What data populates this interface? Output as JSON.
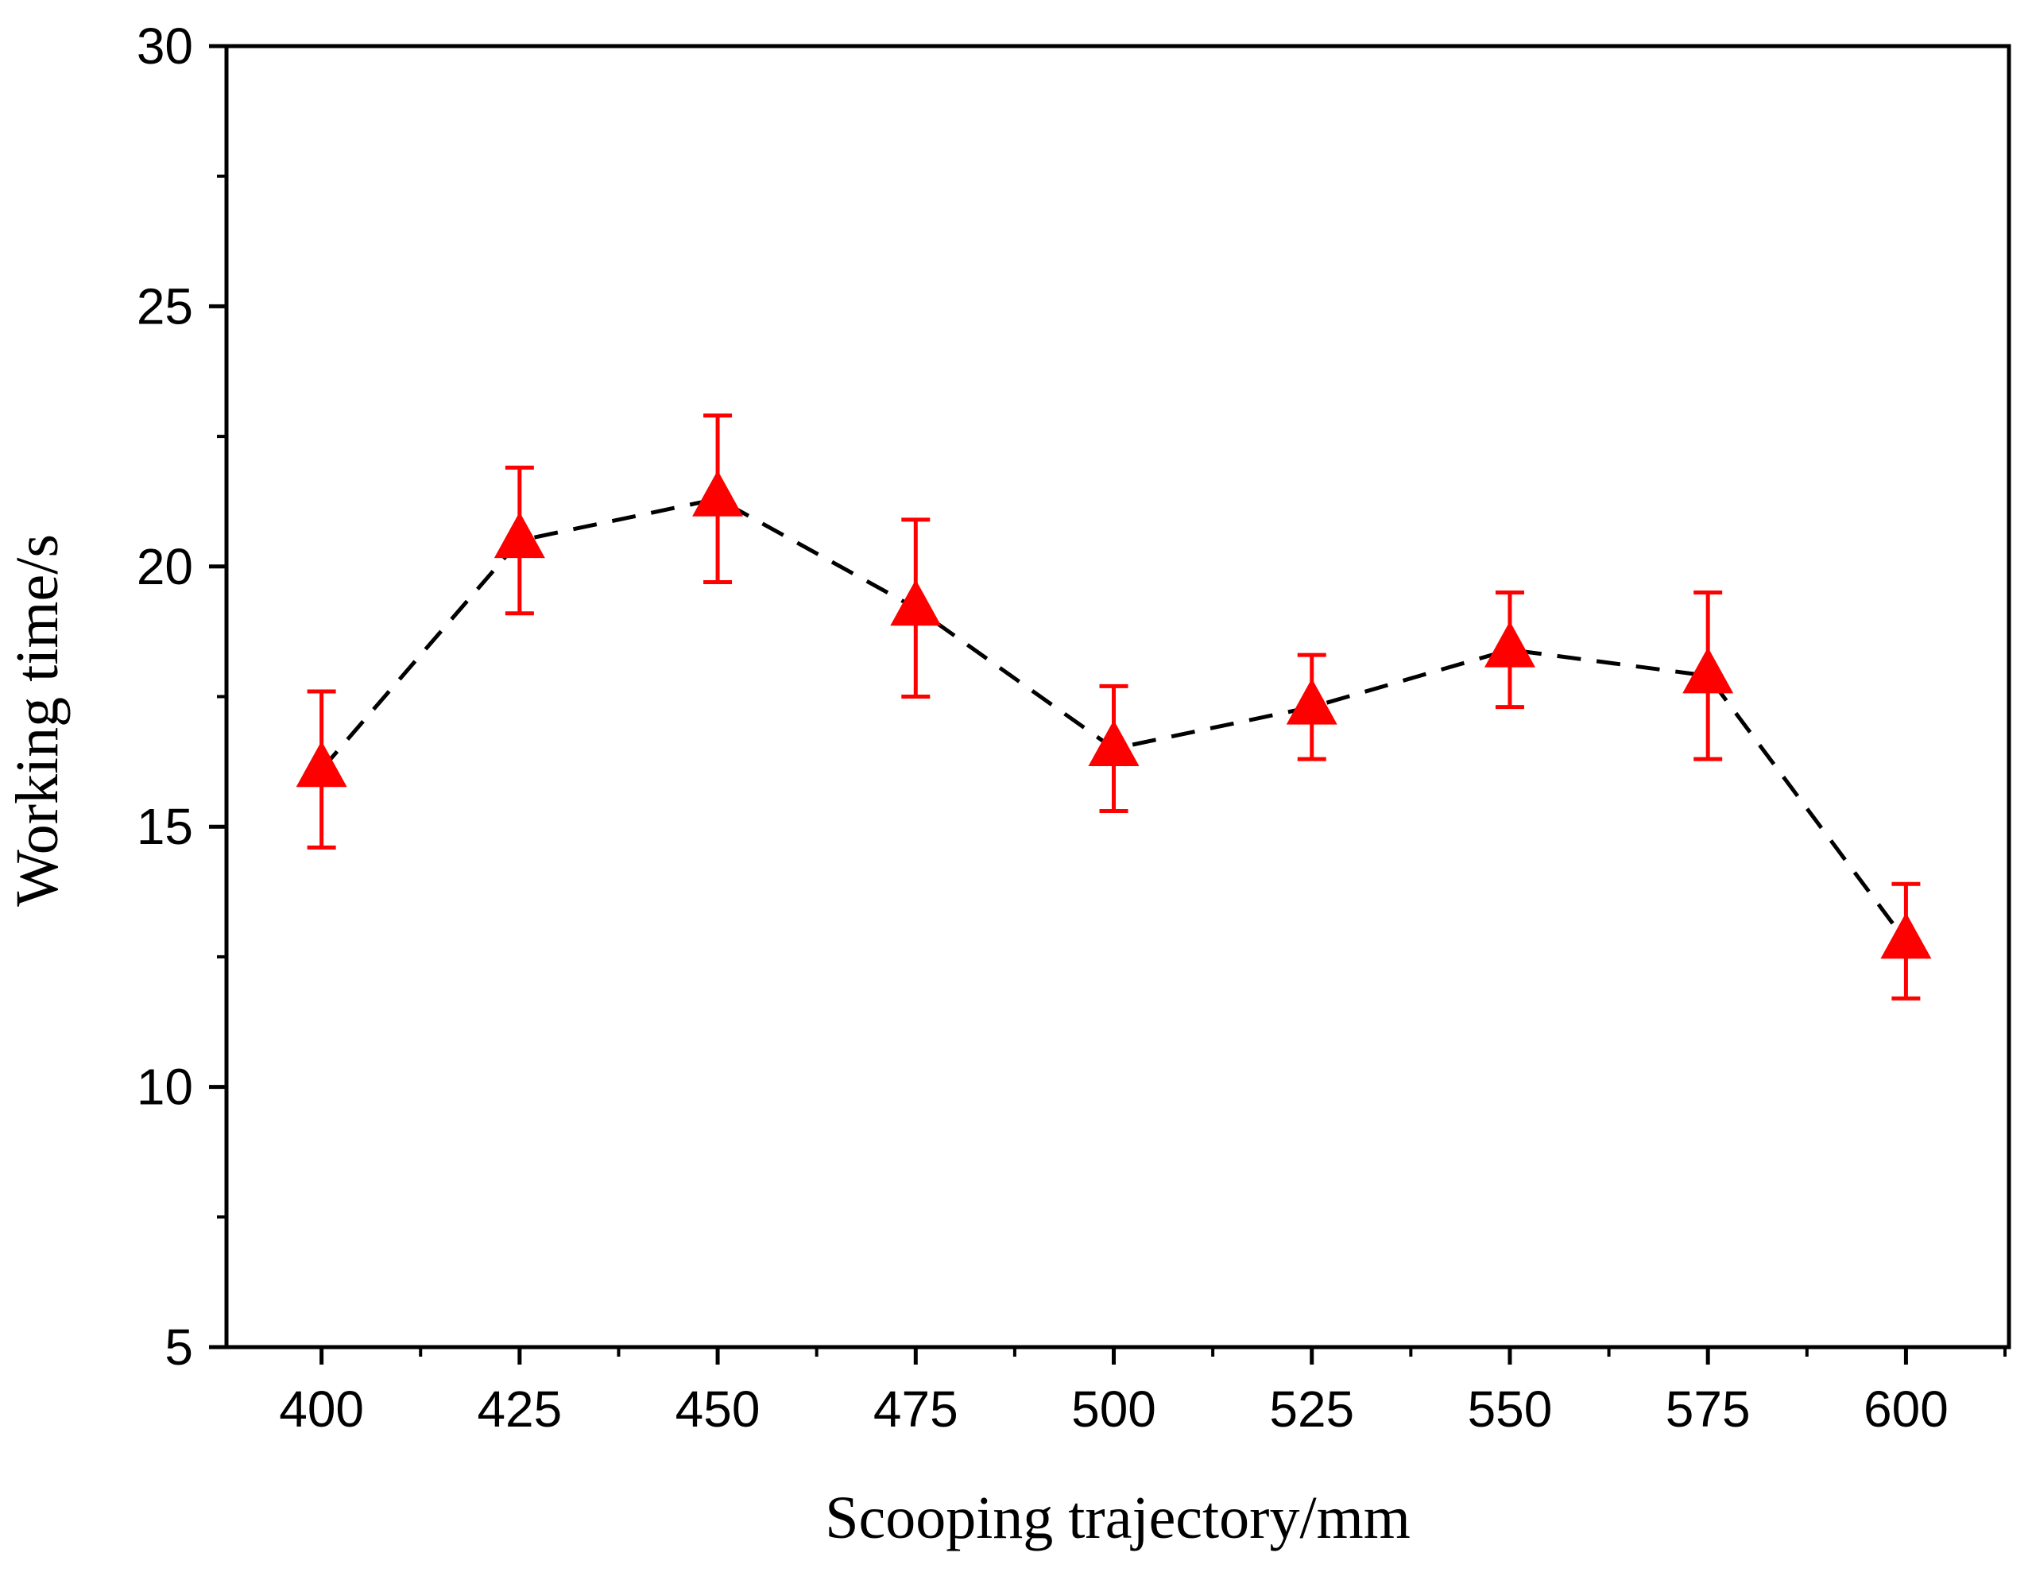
{
  "chart_data": {
    "type": "line",
    "title": "",
    "xlabel": "Scooping trajectory/mm",
    "ylabel": "Working time/s",
    "xlim": [
      388,
      613
    ],
    "ylim": [
      5,
      30
    ],
    "x_ticks": [
      400,
      425,
      450,
      475,
      500,
      525,
      550,
      575,
      600
    ],
    "y_ticks": [
      5,
      10,
      15,
      20,
      25,
      30
    ],
    "x_tick_labels": [
      "400",
      "425",
      "450",
      "475",
      "500",
      "525",
      "550",
      "575",
      "600"
    ],
    "y_tick_labels": [
      "5",
      "10",
      "15",
      "20",
      "25",
      "30"
    ],
    "grid": false,
    "legend": "none",
    "series": [
      {
        "name": "Working time",
        "x": [
          400,
          425,
          450,
          475,
          500,
          525,
          550,
          575,
          600
        ],
        "y": [
          16.1,
          20.5,
          21.3,
          19.2,
          16.5,
          17.3,
          18.4,
          17.9,
          12.8
        ],
        "err_upper": [
          17.6,
          21.9,
          22.9,
          20.9,
          17.7,
          18.3,
          19.5,
          19.5,
          13.9
        ],
        "err_lower": [
          14.6,
          19.1,
          19.7,
          17.5,
          15.3,
          16.3,
          17.3,
          16.3,
          11.7
        ],
        "marker": "triangle-up",
        "marker_color": "#ff0000",
        "line_style": "dashed",
        "line_color": "#000000"
      }
    ]
  }
}
